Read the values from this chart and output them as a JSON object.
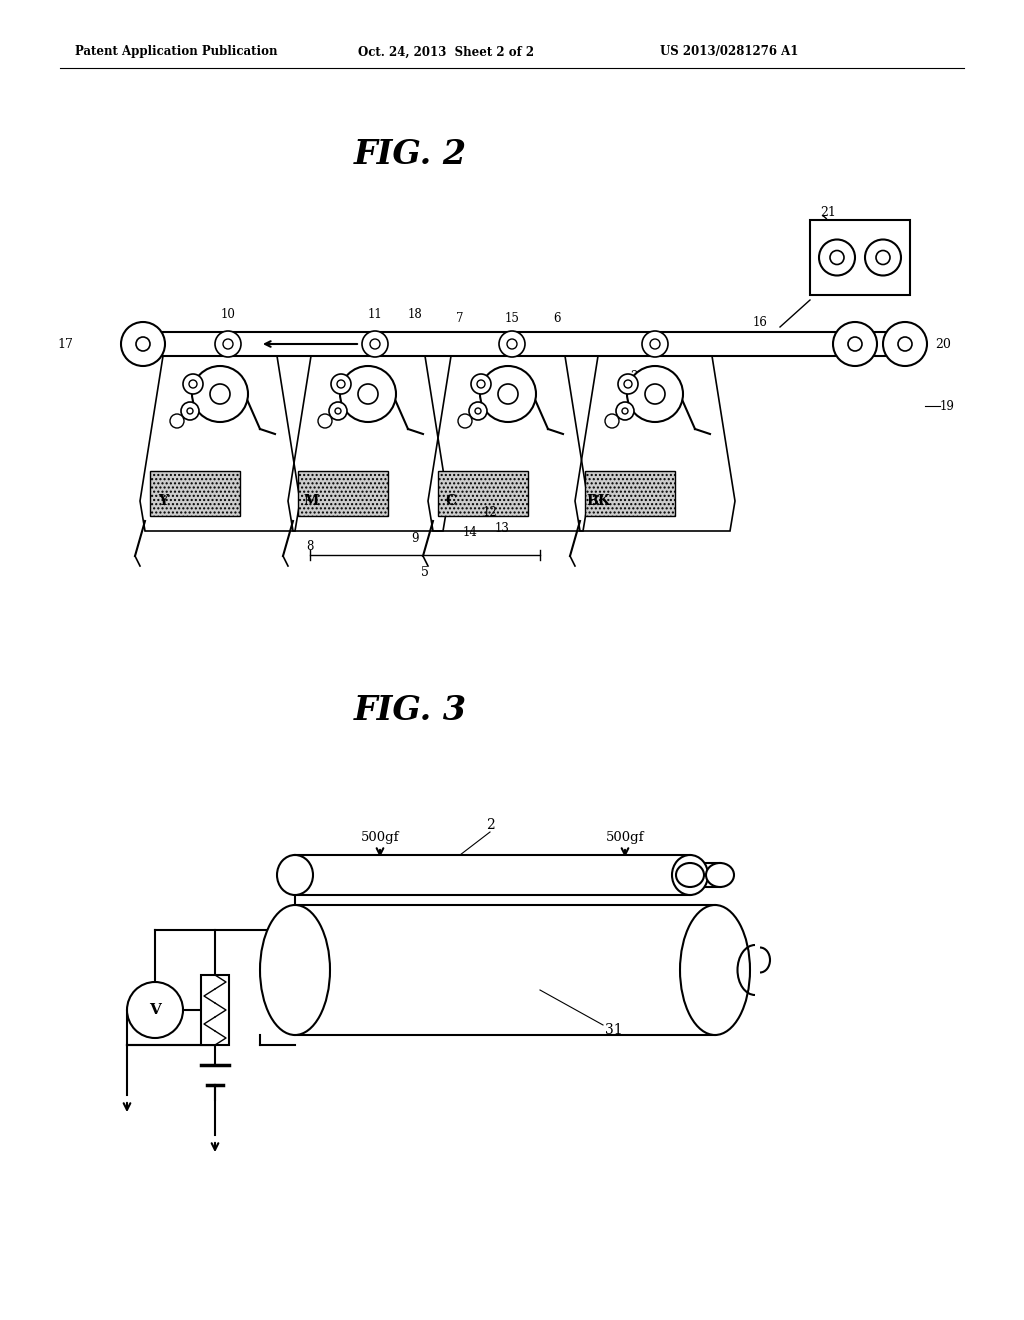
{
  "header_left": "Patent Application Publication",
  "header_mid": "Oct. 24, 2013  Sheet 2 of 2",
  "header_right": "US 2013/0281276 A1",
  "fig2_title": "FIG. 2",
  "fig3_title": "FIG. 3",
  "bg_color": "#ffffff",
  "line_color": "#000000"
}
